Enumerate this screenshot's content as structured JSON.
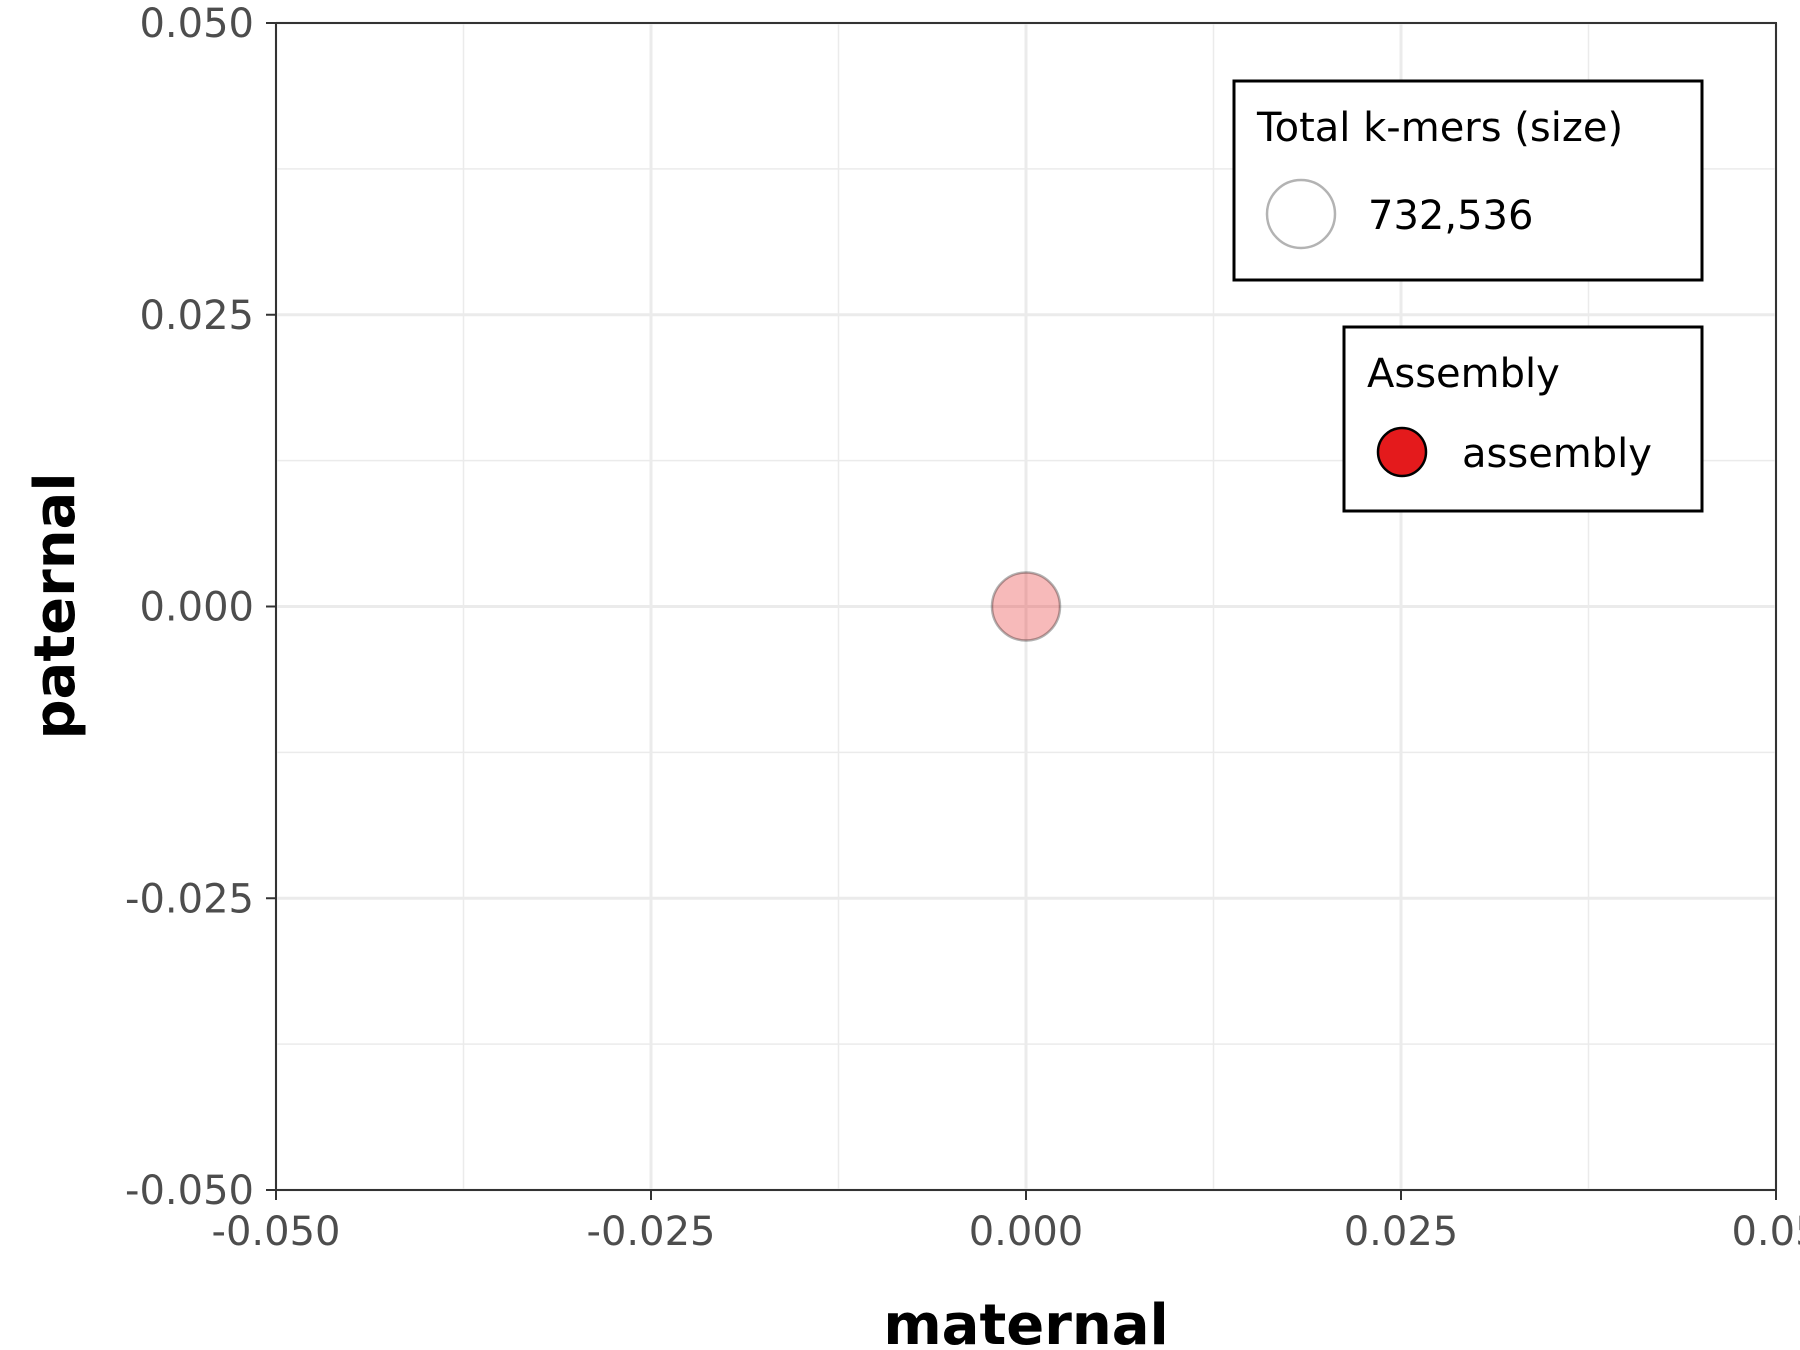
{
  "chart_data": {
    "type": "scatter",
    "title": "",
    "xlabel": "maternal",
    "ylabel": "paternal",
    "xlim": [
      -0.05,
      0.05
    ],
    "ylim": [
      -0.05,
      0.05
    ],
    "x_ticks": [
      "-0.050",
      "-0.025",
      "0.000",
      "0.025",
      "0.05"
    ],
    "y_ticks": [
      "0.050",
      "0.025",
      "0.000",
      "-0.025",
      "-0.050"
    ],
    "x_tick_values": [
      -0.05,
      -0.025,
      0,
      0.025,
      0.05
    ],
    "y_tick_values": [
      0.05,
      0.025,
      0,
      -0.025,
      -0.05
    ],
    "grid": true,
    "series": [
      {
        "name": "assembly",
        "color": "#e41a1c",
        "points": [
          {
            "x": 0.0,
            "y": 0.0,
            "total_kmers": 732536
          }
        ]
      }
    ],
    "legends": {
      "size": {
        "title": "Total k-mers (size)",
        "entries": [
          "732,536"
        ]
      },
      "color": {
        "title": "Assembly",
        "entries": [
          "assembly"
        ],
        "colors": [
          "#e41a1c"
        ]
      },
      "placement": "top-right"
    }
  }
}
